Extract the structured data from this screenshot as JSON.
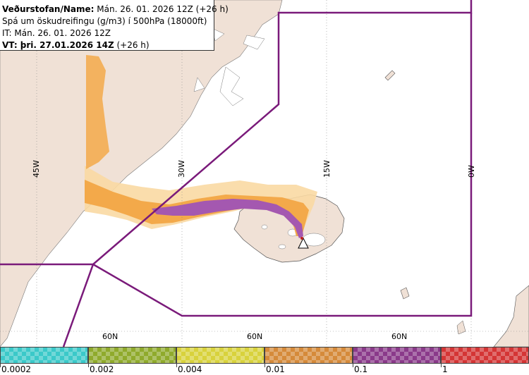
{
  "info": {
    "line1_bold": "Veðurstofan/Name:",
    "line1_rest": " Mán. 26. 01. 2026 12Z (+26 h)",
    "line2": "Spá um öskudreifingu (g/m3) í 500hPa (18000ft)",
    "line3": "IT: Mán. 26. 01. 2026 12Z",
    "line4_bold": "VT: þri. 27.01.2026 14Z",
    "line4_rest": " (+26 h)"
  },
  "grid_labels": {
    "lon": [
      "45W",
      "30W",
      "15W",
      "0W"
    ],
    "lat": [
      "60N",
      "60N",
      "60N"
    ]
  },
  "legend": {
    "labels": [
      "0.0002",
      "0.002",
      "0.004",
      "0.01",
      "0.1",
      "1"
    ],
    "colors": [
      "#3bc9c9",
      "#8faa2c",
      "#d8d23c",
      "#d58a3a",
      "#8a3a8a",
      "#d43535"
    ]
  },
  "colors": {
    "land": "#f0e1d6",
    "region_border": "#7a1a7a",
    "ash_light": "#f5c27a",
    "ash_orange": "#f3a94a",
    "ash_purple": "#a458b0"
  },
  "icons": {
    "volcano": "volcano-triangle-icon"
  }
}
